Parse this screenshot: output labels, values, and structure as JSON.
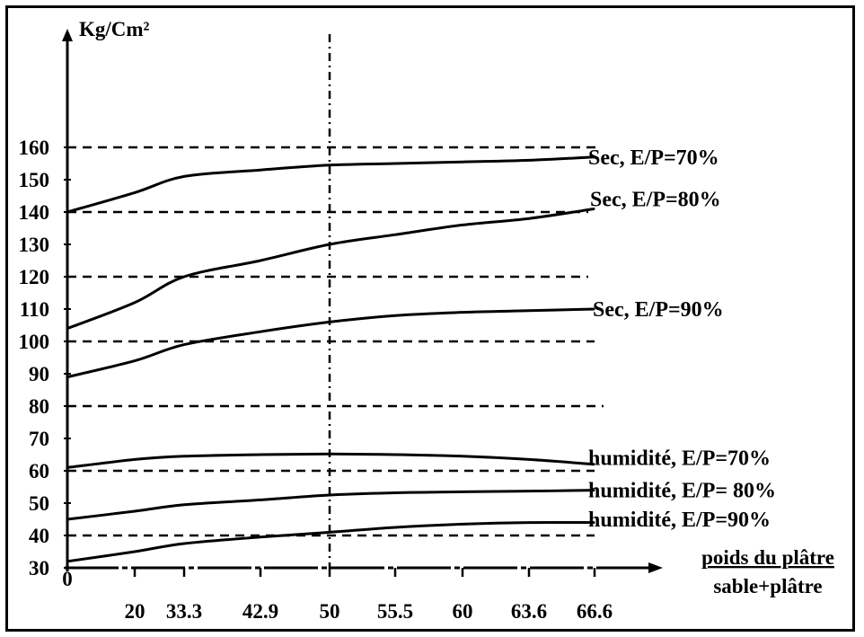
{
  "chart_data": {
    "type": "line",
    "title": "",
    "ylabel": "Kg/Cm²",
    "xlabel_numerator": "poids du plâtre",
    "xlabel_denominator": "sable+plâtre",
    "x_ticks": [
      "0",
      "20",
      "33.3",
      "42.9",
      "50",
      "55.5",
      "60",
      "63.6",
      "66.6"
    ],
    "y_ticks": [
      30,
      40,
      50,
      60,
      70,
      80,
      90,
      100,
      110,
      120,
      130,
      140,
      150,
      160
    ],
    "ylim": [
      30,
      160
    ],
    "grid": {
      "y_dashed_at": [
        40,
        60,
        80,
        100,
        120,
        140,
        160
      ],
      "x_dashed_at_tick": "50"
    },
    "series": [
      {
        "name": "Sec, E/P=70%",
        "tick_positions": [
          0,
          1,
          2,
          3,
          4,
          5,
          6,
          7,
          8
        ],
        "values": [
          140,
          146,
          151,
          153,
          154.5,
          155,
          155.5,
          156,
          157
        ]
      },
      {
        "name": "Sec, E/P=80%",
        "tick_positions": [
          0,
          1,
          2,
          3,
          4,
          5,
          6,
          7,
          8
        ],
        "values": [
          104,
          112,
          120,
          125,
          130,
          133,
          136,
          138,
          141
        ]
      },
      {
        "name": "Sec, E/P=90%",
        "tick_positions": [
          0,
          1,
          2,
          3,
          4,
          5,
          6,
          7,
          8
        ],
        "values": [
          89,
          94,
          99,
          103,
          106,
          108,
          109,
          109.5,
          110
        ]
      },
      {
        "name": "humidité, E/P=70%",
        "tick_positions": [
          0,
          1,
          2,
          3,
          4,
          5,
          6,
          7,
          8
        ],
        "values": [
          61,
          63.5,
          64.5,
          65,
          65.2,
          65,
          64.5,
          63.5,
          62
        ]
      },
      {
        "name": "humidité, E/P= 80%",
        "tick_positions": [
          0,
          1,
          2,
          3,
          4,
          5,
          6,
          7,
          8
        ],
        "values": [
          45,
          47.5,
          49.5,
          51,
          52.5,
          53.2,
          53.5,
          53.7,
          54
        ]
      },
      {
        "name": "humidité, E/P=90%",
        "tick_positions": [
          0,
          1,
          2,
          3,
          4,
          5,
          6,
          7,
          8
        ],
        "values": [
          32,
          35,
          37.5,
          39.5,
          41,
          42.5,
          43.5,
          44,
          44
        ]
      }
    ]
  }
}
